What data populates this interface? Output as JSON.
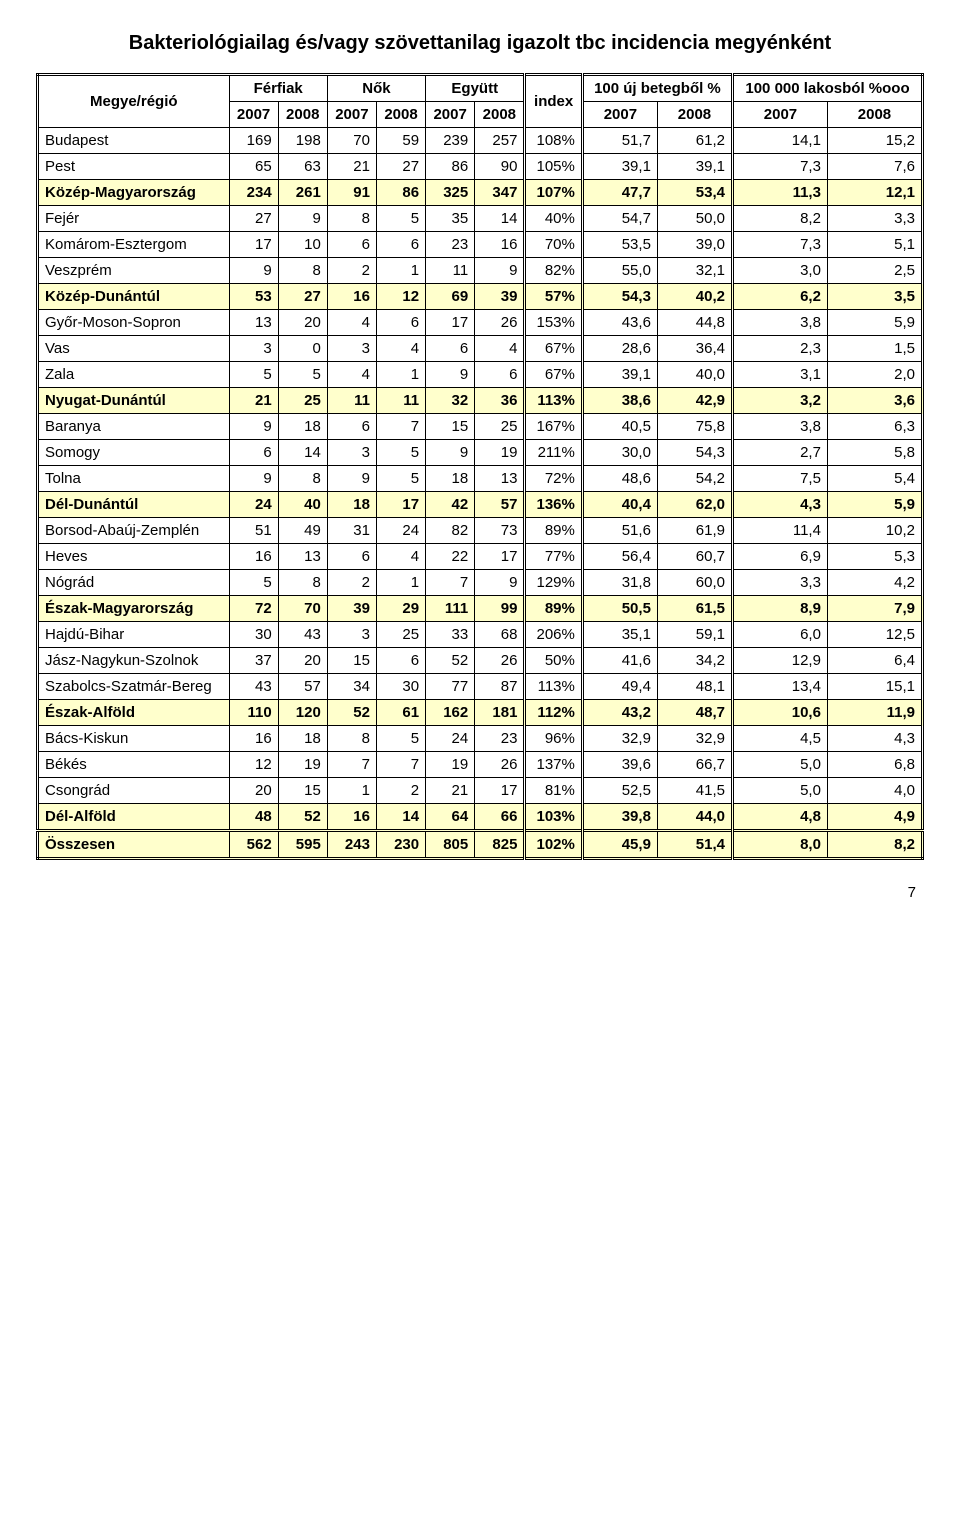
{
  "title": "Bakteriológiailag és/vagy szövettanilag igazolt tbc incidencia megyénként",
  "page_number": "7",
  "header": {
    "col1": "Megye/régió",
    "ferfiak": "Férfiak",
    "nok": "Nők",
    "egyutt": "Együtt",
    "index": "index",
    "uj_beteg": "100 új betegből %",
    "lakos": "100 000 lakosból %ooo",
    "y2007": "2007",
    "y2008": "2008"
  },
  "rows": [
    {
      "label": "Budapest",
      "section": false,
      "v": [
        "169",
        "198",
        "70",
        "59",
        "239",
        "257",
        "108%",
        "51,7",
        "61,2",
        "14,1",
        "15,2"
      ]
    },
    {
      "label": "Pest",
      "section": false,
      "v": [
        "65",
        "63",
        "21",
        "27",
        "86",
        "90",
        "105%",
        "39,1",
        "39,1",
        "7,3",
        "7,6"
      ]
    },
    {
      "label": "Közép-Magyarország",
      "section": true,
      "v": [
        "234",
        "261",
        "91",
        "86",
        "325",
        "347",
        "107%",
        "47,7",
        "53,4",
        "11,3",
        "12,1"
      ]
    },
    {
      "label": "Fejér",
      "section": false,
      "v": [
        "27",
        "9",
        "8",
        "5",
        "35",
        "14",
        "40%",
        "54,7",
        "50,0",
        "8,2",
        "3,3"
      ]
    },
    {
      "label": "Komárom-Esztergom",
      "section": false,
      "v": [
        "17",
        "10",
        "6",
        "6",
        "23",
        "16",
        "70%",
        "53,5",
        "39,0",
        "7,3",
        "5,1"
      ]
    },
    {
      "label": "Veszprém",
      "section": false,
      "v": [
        "9",
        "8",
        "2",
        "1",
        "11",
        "9",
        "82%",
        "55,0",
        "32,1",
        "3,0",
        "2,5"
      ]
    },
    {
      "label": "Közép-Dunántúl",
      "section": true,
      "v": [
        "53",
        "27",
        "16",
        "12",
        "69",
        "39",
        "57%",
        "54,3",
        "40,2",
        "6,2",
        "3,5"
      ]
    },
    {
      "label": "Győr-Moson-Sopron",
      "section": false,
      "v": [
        "13",
        "20",
        "4",
        "6",
        "17",
        "26",
        "153%",
        "43,6",
        "44,8",
        "3,8",
        "5,9"
      ]
    },
    {
      "label": "Vas",
      "section": false,
      "v": [
        "3",
        "0",
        "3",
        "4",
        "6",
        "4",
        "67%",
        "28,6",
        "36,4",
        "2,3",
        "1,5"
      ]
    },
    {
      "label": "Zala",
      "section": false,
      "v": [
        "5",
        "5",
        "4",
        "1",
        "9",
        "6",
        "67%",
        "39,1",
        "40,0",
        "3,1",
        "2,0"
      ]
    },
    {
      "label": "Nyugat-Dunántúl",
      "section": true,
      "v": [
        "21",
        "25",
        "11",
        "11",
        "32",
        "36",
        "113%",
        "38,6",
        "42,9",
        "3,2",
        "3,6"
      ]
    },
    {
      "label": "Baranya",
      "section": false,
      "v": [
        "9",
        "18",
        "6",
        "7",
        "15",
        "25",
        "167%",
        "40,5",
        "75,8",
        "3,8",
        "6,3"
      ]
    },
    {
      "label": "Somogy",
      "section": false,
      "v": [
        "6",
        "14",
        "3",
        "5",
        "9",
        "19",
        "211%",
        "30,0",
        "54,3",
        "2,7",
        "5,8"
      ]
    },
    {
      "label": "Tolna",
      "section": false,
      "v": [
        "9",
        "8",
        "9",
        "5",
        "18",
        "13",
        "72%",
        "48,6",
        "54,2",
        "7,5",
        "5,4"
      ]
    },
    {
      "label": "Dél-Dunántúl",
      "section": true,
      "v": [
        "24",
        "40",
        "18",
        "17",
        "42",
        "57",
        "136%",
        "40,4",
        "62,0",
        "4,3",
        "5,9"
      ]
    },
    {
      "label": "Borsod-Abaúj-Zemplén",
      "section": false,
      "v": [
        "51",
        "49",
        "31",
        "24",
        "82",
        "73",
        "89%",
        "51,6",
        "61,9",
        "11,4",
        "10,2"
      ]
    },
    {
      "label": "Heves",
      "section": false,
      "v": [
        "16",
        "13",
        "6",
        "4",
        "22",
        "17",
        "77%",
        "56,4",
        "60,7",
        "6,9",
        "5,3"
      ]
    },
    {
      "label": "Nógrád",
      "section": false,
      "v": [
        "5",
        "8",
        "2",
        "1",
        "7",
        "9",
        "129%",
        "31,8",
        "60,0",
        "3,3",
        "4,2"
      ]
    },
    {
      "label": "Észak-Magyarország",
      "section": true,
      "v": [
        "72",
        "70",
        "39",
        "29",
        "111",
        "99",
        "89%",
        "50,5",
        "61,5",
        "8,9",
        "7,9"
      ]
    },
    {
      "label": "Hajdú-Bihar",
      "section": false,
      "v": [
        "30",
        "43",
        "3",
        "25",
        "33",
        "68",
        "206%",
        "35,1",
        "59,1",
        "6,0",
        "12,5"
      ]
    },
    {
      "label": "Jász-Nagykun-Szolnok",
      "section": false,
      "v": [
        "37",
        "20",
        "15",
        "6",
        "52",
        "26",
        "50%",
        "41,6",
        "34,2",
        "12,9",
        "6,4"
      ]
    },
    {
      "label": "Szabolcs-Szatmár-Bereg",
      "section": false,
      "v": [
        "43",
        "57",
        "34",
        "30",
        "77",
        "87",
        "113%",
        "49,4",
        "48,1",
        "13,4",
        "15,1"
      ]
    },
    {
      "label": "Észak-Alföld",
      "section": true,
      "v": [
        "110",
        "120",
        "52",
        "61",
        "162",
        "181",
        "112%",
        "43,2",
        "48,7",
        "10,6",
        "11,9"
      ]
    },
    {
      "label": "Bács-Kiskun",
      "section": false,
      "v": [
        "16",
        "18",
        "8",
        "5",
        "24",
        "23",
        "96%",
        "32,9",
        "32,9",
        "4,5",
        "4,3"
      ]
    },
    {
      "label": "Békés",
      "section": false,
      "v": [
        "12",
        "19",
        "7",
        "7",
        "19",
        "26",
        "137%",
        "39,6",
        "66,7",
        "5,0",
        "6,8"
      ]
    },
    {
      "label": "Csongrád",
      "section": false,
      "v": [
        "20",
        "15",
        "1",
        "2",
        "21",
        "17",
        "81%",
        "52,5",
        "41,5",
        "5,0",
        "4,0"
      ]
    },
    {
      "label": "Dél-Alföld",
      "section": true,
      "v": [
        "48",
        "52",
        "16",
        "14",
        "64",
        "66",
        "103%",
        "39,8",
        "44,0",
        "4,8",
        "4,9"
      ]
    }
  ],
  "total": {
    "label": "Összesen",
    "v": [
      "562",
      "595",
      "243",
      "230",
      "805",
      "825",
      "102%",
      "45,9",
      "51,4",
      "8,0",
      "8,2"
    ]
  }
}
